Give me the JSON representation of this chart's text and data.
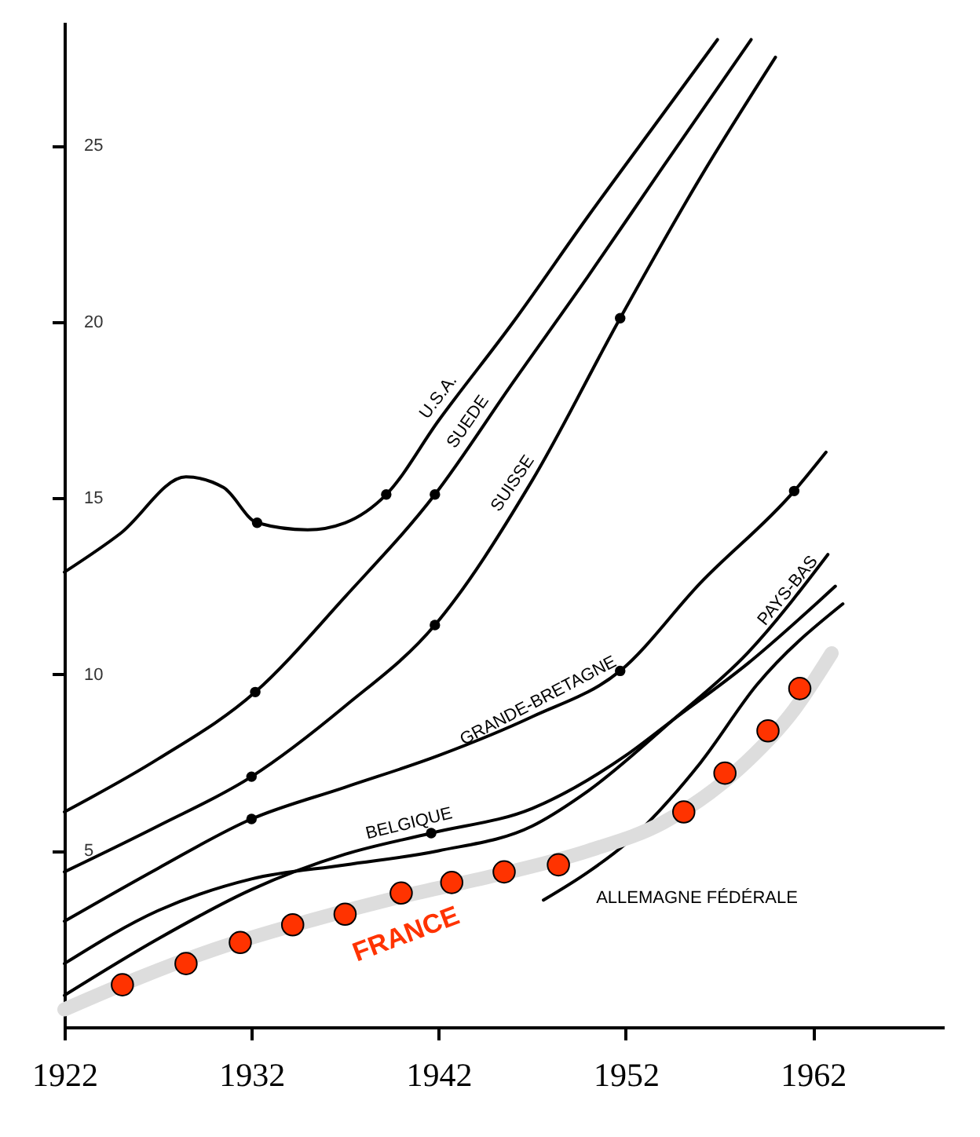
{
  "chart_data": {
    "type": "line",
    "xlim": [
      1922,
      1969
    ],
    "ylim": [
      0,
      28.5
    ],
    "xticks": [
      1922,
      1932,
      1942,
      1952,
      1962
    ],
    "yticks": [
      5,
      10,
      15,
      20,
      25
    ],
    "grid": false,
    "series": [
      {
        "name": "U.S.A.",
        "color": "#000000",
        "x": [
          1922,
          1925,
          1928.5,
          1930.5,
          1932.3,
          1935,
          1937,
          1939.2,
          1942,
          1946,
          1950,
          1954,
          1956.9
        ],
        "values": [
          12.9,
          14.0,
          15.6,
          15.3,
          14.3,
          14.1,
          14.3,
          15.1,
          17.2,
          20.0,
          23.0,
          25.9,
          28.0
        ]
      },
      {
        "name": "SUEDE",
        "color": "#000000",
        "x": [
          1922,
          1927,
          1932.2,
          1937,
          1941.8,
          1946,
          1950,
          1954,
          1958.7
        ],
        "values": [
          6.1,
          7.6,
          9.5,
          12.2,
          15.1,
          18.3,
          21.3,
          24.4,
          28.0
        ]
      },
      {
        "name": "SUISSE",
        "color": "#000000",
        "x": [
          1922,
          1927,
          1932,
          1937,
          1941.8,
          1947,
          1951.7,
          1956,
          1960
        ],
        "values": [
          4.4,
          5.7,
          7.1,
          9.1,
          11.4,
          15.5,
          20.1,
          24.1,
          27.5
        ]
      },
      {
        "name": "GRANDE-BRETAGNE",
        "color": "#000000",
        "x": [
          1922,
          1927,
          1932,
          1937,
          1942,
          1947,
          1951.7,
          1956,
          1961,
          1962.7
        ],
        "values": [
          3.0,
          4.5,
          5.9,
          6.8,
          7.7,
          8.8,
          10.1,
          12.6,
          15.2,
          16.3
        ]
      },
      {
        "name": "PAYS-BAS",
        "color": "#000000",
        "x": [
          1922,
          1927,
          1932,
          1937,
          1942,
          1947,
          1950,
          1954.5,
          1958.5,
          1962.8
        ],
        "values": [
          1.8,
          3.3,
          4.2,
          4.6,
          5.0,
          5.7,
          6.7,
          8.7,
          10.6,
          13.4
        ]
      },
      {
        "name": "BELGIQUE",
        "color": "#000000",
        "x": [
          1922,
          1927,
          1932,
          1937,
          1941.6,
          1947,
          1952,
          1954.5,
          1958.5,
          1963.2
        ],
        "values": [
          0.9,
          2.5,
          3.9,
          4.9,
          5.5,
          6.2,
          7.7,
          8.7,
          10.3,
          12.5
        ]
      },
      {
        "name": "ALLEMAGNE  FÉDÉRALE",
        "color": "#000000",
        "x": [
          1947.6,
          1950,
          1952,
          1956,
          1959,
          1963.6
        ],
        "values": [
          3.6,
          4.4,
          5.2,
          7.5,
          9.7,
          12.0
        ]
      },
      {
        "type": "line",
        "color": "#dddddd",
        "x": [
          1922,
          1926,
          1930,
          1935,
          1940,
          1945,
          1950,
          1954,
          1958,
          1961,
          1963
        ],
        "values": [
          0.5,
          1.4,
          2.2,
          3.0,
          3.7,
          4.3,
          5.0,
          5.8,
          7.3,
          9.0,
          10.6
        ]
      },
      {
        "type": "scatter",
        "marker": "circle",
        "name": "FRANCE",
        "color": "#ff3300",
        "x": [
          1925.1,
          1928.5,
          1931.4,
          1934.2,
          1937,
          1940,
          1942.7,
          1945.5,
          1948.4,
          1955.1,
          1957.3,
          1959.6,
          1961.3
        ],
        "values": [
          1.2,
          1.8,
          2.4,
          2.9,
          3.2,
          3.8,
          4.1,
          4.4,
          4.6,
          6.1,
          7.2,
          8.4,
          9.6
        ]
      },
      {
        "type": "scatter",
        "marker": "circle",
        "color": "#000000",
        "x": [
          1932.3,
          1939.2,
          1932.2,
          1941.8,
          1932,
          1941.8,
          1951.7,
          1932,
          1951.7,
          1961,
          1941.6
        ],
        "values": [
          14.3,
          15.1,
          9.5,
          15.1,
          7.1,
          11.4,
          20.1,
          5.9,
          10.1,
          15.2,
          5.5
        ]
      }
    ]
  }
}
